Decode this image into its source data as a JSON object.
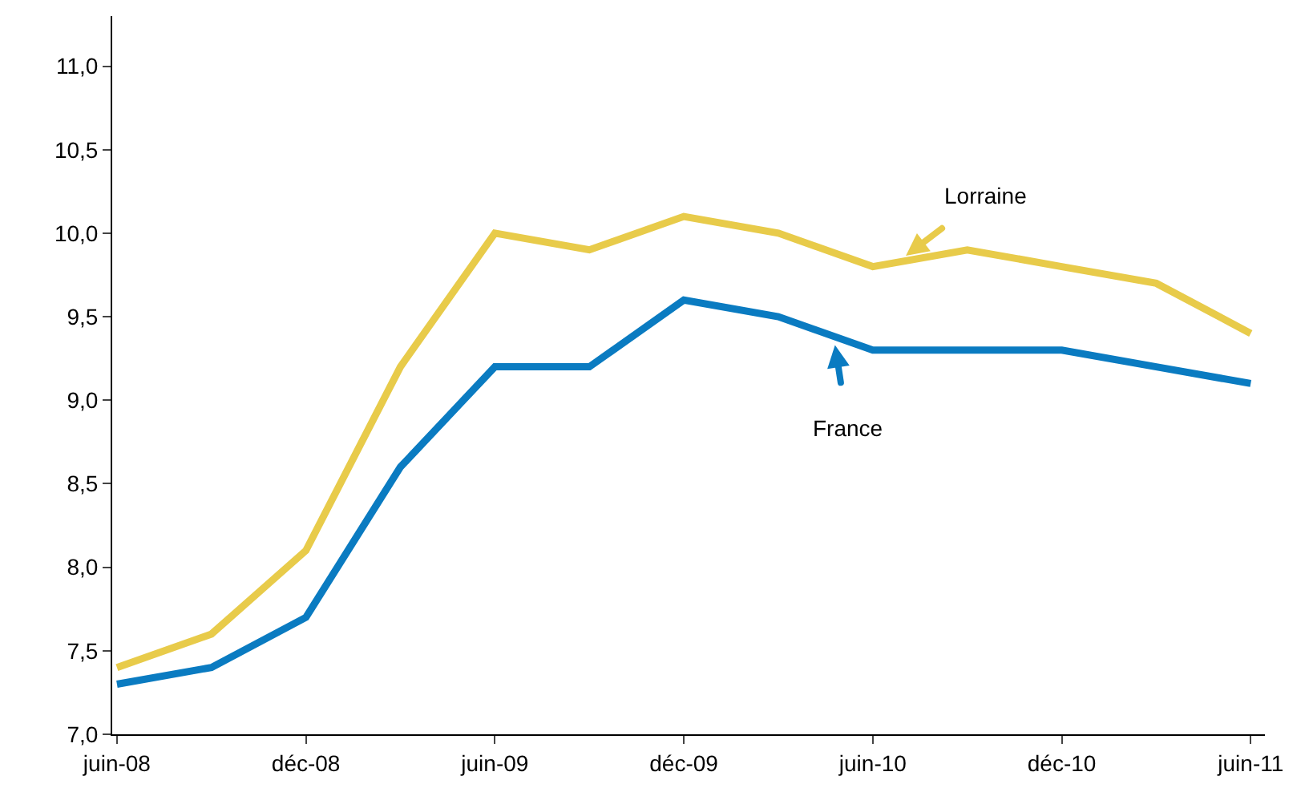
{
  "chart_data": {
    "type": "line",
    "categories": [
      "juin-08",
      null,
      "déc-08",
      null,
      "juin-09",
      null,
      "déc-09",
      null,
      "juin-10",
      null,
      "déc-10",
      null,
      "juin-11"
    ],
    "series": [
      {
        "name": "Lorraine",
        "color": "#e8cb4a",
        "values": [
          7.4,
          7.6,
          8.1,
          9.2,
          10.0,
          9.9,
          10.1,
          10.0,
          9.8,
          9.9,
          9.8,
          9.7,
          9.4
        ]
      },
      {
        "name": "France",
        "color": "#0a7bc1",
        "values": [
          7.3,
          7.4,
          7.7,
          8.6,
          9.2,
          9.2,
          9.6,
          9.5,
          9.3,
          9.3,
          9.3,
          9.2,
          9.1
        ]
      }
    ],
    "ylim": [
      7,
      11.3
    ],
    "yticks": [
      {
        "value": 7,
        "label": "7,0"
      },
      {
        "value": 7.5,
        "label": "7,5"
      },
      {
        "value": 8,
        "label": "8,0"
      },
      {
        "value": 8.5,
        "label": "8,5"
      },
      {
        "value": 9,
        "label": "9,0"
      },
      {
        "value": 9.5,
        "label": "9,5"
      },
      {
        "value": 10,
        "label": "10,0"
      },
      {
        "value": 10.5,
        "label": "10,5"
      },
      {
        "value": 11,
        "label": "11,0"
      }
    ],
    "grid": false,
    "legend": false,
    "marker": "none",
    "line_style": "solid"
  }
}
